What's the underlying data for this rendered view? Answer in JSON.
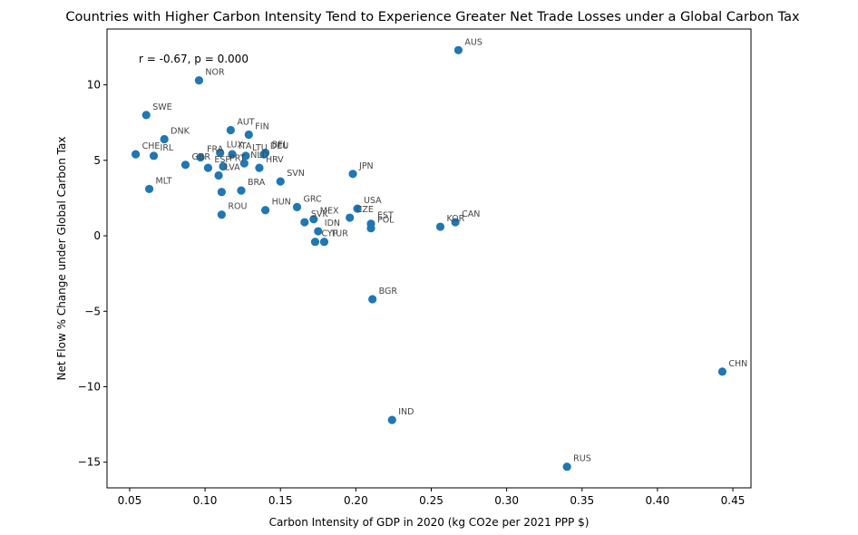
{
  "chart_data": {
    "type": "scatter",
    "title": "Countries with Higher Carbon Intensity Tend to Experience Greater Net Trade Losses under a Global Carbon Tax",
    "xlabel": "Carbon Intensity of GDP in 2020 (kg CO2e per 2021 PPP $)",
    "ylabel": "Net Flow % Change under Global Carbon Tax",
    "annotation": "r = -0.67, p = 0.000",
    "xlim": [
      0.035,
      0.462
    ],
    "ylim": [
      -16.7,
      13.7
    ],
    "xticks": [
      0.05,
      0.1,
      0.15,
      0.2,
      0.25,
      0.3,
      0.35,
      0.4,
      0.45
    ],
    "xtick_labels": [
      "0.05",
      "0.10",
      "0.15",
      "0.20",
      "0.25",
      "0.30",
      "0.35",
      "0.40",
      "0.45"
    ],
    "yticks": [
      -15,
      -10,
      -5,
      0,
      5,
      10
    ],
    "ytick_labels": [
      "−15",
      "−10",
      "−5",
      "0",
      "5",
      "10"
    ],
    "grid": false,
    "marker_color": "#1f77b4",
    "label_color": "#444444",
    "points": [
      {
        "label": "AUS",
        "x": 0.268,
        "y": 12.3
      },
      {
        "label": "NOR",
        "x": 0.096,
        "y": 10.3
      },
      {
        "label": "SWE",
        "x": 0.061,
        "y": 8.0
      },
      {
        "label": "AUT",
        "x": 0.117,
        "y": 7.0
      },
      {
        "label": "FIN",
        "x": 0.129,
        "y": 6.7
      },
      {
        "label": "DNK",
        "x": 0.073,
        "y": 6.4
      },
      {
        "label": "BEL",
        "x": 0.14,
        "y": 5.5
      },
      {
        "label": "DEU",
        "x": 0.139,
        "y": 5.4
      },
      {
        "label": "LTU",
        "x": 0.127,
        "y": 5.3
      },
      {
        "label": "ITA",
        "x": 0.118,
        "y": 5.4
      },
      {
        "label": "LUX",
        "x": 0.11,
        "y": 5.5
      },
      {
        "label": "NLD",
        "x": 0.126,
        "y": 4.8
      },
      {
        "label": "CHE",
        "x": 0.054,
        "y": 5.4
      },
      {
        "label": "IRL",
        "x": 0.066,
        "y": 5.3
      },
      {
        "label": "FRA",
        "x": 0.097,
        "y": 5.2
      },
      {
        "label": "GBR",
        "x": 0.087,
        "y": 4.7
      },
      {
        "label": "ESP",
        "x": 0.102,
        "y": 4.5
      },
      {
        "label": "PRT",
        "x": 0.112,
        "y": 4.6
      },
      {
        "label": "HRV",
        "x": 0.136,
        "y": 4.5
      },
      {
        "label": "JPN",
        "x": 0.198,
        "y": 4.1
      },
      {
        "label": "SVN",
        "x": 0.15,
        "y": 3.6
      },
      {
        "label": "LVA",
        "x": 0.109,
        "y": 4.0
      },
      {
        "label": "BRA",
        "x": 0.124,
        "y": 3.0
      },
      {
        "label": "MLT",
        "x": 0.063,
        "y": 3.1
      },
      {
        "label": "LVA_2",
        "x": 0.111,
        "y": 2.9
      },
      {
        "label": "GRC",
        "x": 0.161,
        "y": 1.9
      },
      {
        "label": "USA",
        "x": 0.201,
        "y": 1.8
      },
      {
        "label": "HUN",
        "x": 0.14,
        "y": 1.7
      },
      {
        "label": "ROU",
        "x": 0.111,
        "y": 1.4
      },
      {
        "label": "MEX",
        "x": 0.172,
        "y": 1.1
      },
      {
        "label": "CZE",
        "x": 0.196,
        "y": 1.2
      },
      {
        "label": "SVK",
        "x": 0.166,
        "y": 0.9
      },
      {
        "label": "CAN",
        "x": 0.266,
        "y": 0.9
      },
      {
        "label": "EST",
        "x": 0.21,
        "y": 0.8
      },
      {
        "label": "KOR",
        "x": 0.256,
        "y": 0.6
      },
      {
        "label": "POL",
        "x": 0.21,
        "y": 0.5
      },
      {
        "label": "IDN",
        "x": 0.175,
        "y": 0.3
      },
      {
        "label": "CYP",
        "x": 0.173,
        "y": -0.4
      },
      {
        "label": "TUR",
        "x": 0.179,
        "y": -0.4
      },
      {
        "label": "BGR",
        "x": 0.211,
        "y": -4.2
      },
      {
        "label": "CHN",
        "x": 0.443,
        "y": -9.0
      },
      {
        "label": "IND",
        "x": 0.224,
        "y": -12.2
      },
      {
        "label": "RUS",
        "x": 0.34,
        "y": -15.3
      }
    ]
  }
}
